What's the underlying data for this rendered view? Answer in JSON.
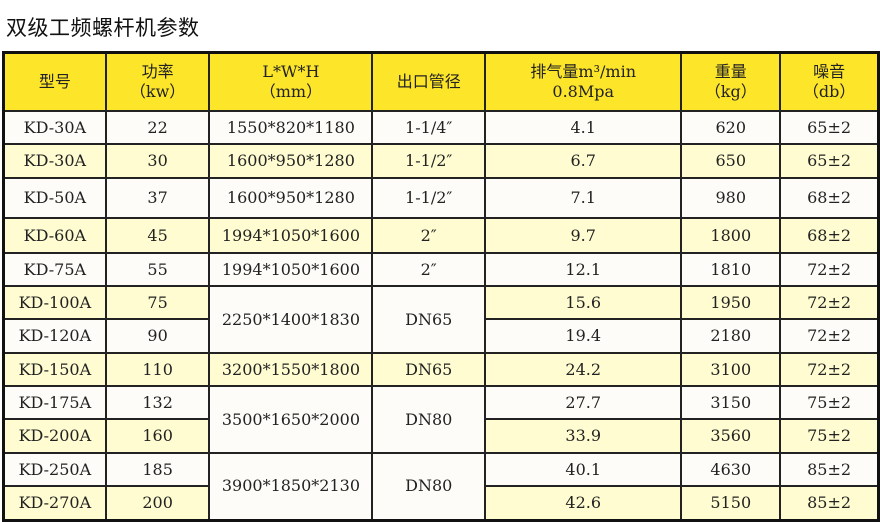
{
  "title": "双级工频螺杆机参数",
  "colors": {
    "header": "#fde52a",
    "row_highlight": "#fefcd0",
    "row_plain": "#fdfcf9",
    "border": "#222222"
  },
  "headers": [
    {
      "line1": "型号",
      "line2": ""
    },
    {
      "line1": "功率",
      "line2": "（kw）"
    },
    {
      "line1": "L*W*H",
      "line2": "（mm）"
    },
    {
      "line1": "出口管径",
      "line2": ""
    },
    {
      "line1": "排气量m³/min",
      "line2": "0.8Mpa"
    },
    {
      "line1": "重量",
      "line2": "（kg）"
    },
    {
      "line1": "噪音",
      "line2": "（db）"
    }
  ],
  "rows": [
    {
      "model": "KD-30A",
      "power": "22",
      "lwh": "1550*820*1180",
      "outlet": "1-1/4″",
      "flow": "4.1",
      "weight": "620",
      "noise": "65±2"
    },
    {
      "model": "KD-30A",
      "power": "30",
      "lwh": "1600*950*1280",
      "outlet": "1-1/2″",
      "flow": "6.7",
      "weight": "650",
      "noise": "65±2"
    },
    {
      "model": "KD-50A",
      "power": "37",
      "lwh": "1600*950*1280",
      "outlet": "1-1/2″",
      "flow": "7.1",
      "weight": "980",
      "noise": "68±2"
    },
    {
      "model": "KD-60A",
      "power": "45",
      "lwh": "1994*1050*1600",
      "outlet": "2″",
      "flow": "9.7",
      "weight": "1800",
      "noise": "68±2"
    },
    {
      "model": "KD-75A",
      "power": "55",
      "lwh": "1994*1050*1600",
      "outlet": "2″",
      "flow": "12.1",
      "weight": "1810",
      "noise": "72±2"
    },
    {
      "model": "KD-100A",
      "power": "75",
      "lwh": "2250*1400*1830",
      "outlet": "DN65",
      "merge_rows": 2,
      "flow": "15.6",
      "weight": "1950",
      "noise": "72±2"
    },
    {
      "model": "KD-120A",
      "power": "90",
      "flow": "19.4",
      "weight": "2180",
      "noise": "72±2"
    },
    {
      "model": "KD-150A",
      "power": "110",
      "lwh": "3200*1550*1800",
      "outlet": "DN65",
      "flow": "24.2",
      "weight": "3100",
      "noise": "72±2"
    },
    {
      "model": "KD-175A",
      "power": "132",
      "lwh": "3500*1650*2000",
      "outlet": "DN80",
      "merge_rows": 2,
      "flow": "27.7",
      "weight": "3150",
      "noise": "75±2"
    },
    {
      "model": "KD-200A",
      "power": "160",
      "flow": "33.9",
      "weight": "3560",
      "noise": "75±2"
    },
    {
      "model": "KD-250A",
      "power": "185",
      "lwh": "3900*1850*2130",
      "outlet": "DN80",
      "merge_rows": 2,
      "flow": "40.1",
      "weight": "4630",
      "noise": "85±2"
    },
    {
      "model": "KD-270A",
      "power": "200",
      "flow": "42.6",
      "weight": "5150",
      "noise": "85±2"
    }
  ]
}
